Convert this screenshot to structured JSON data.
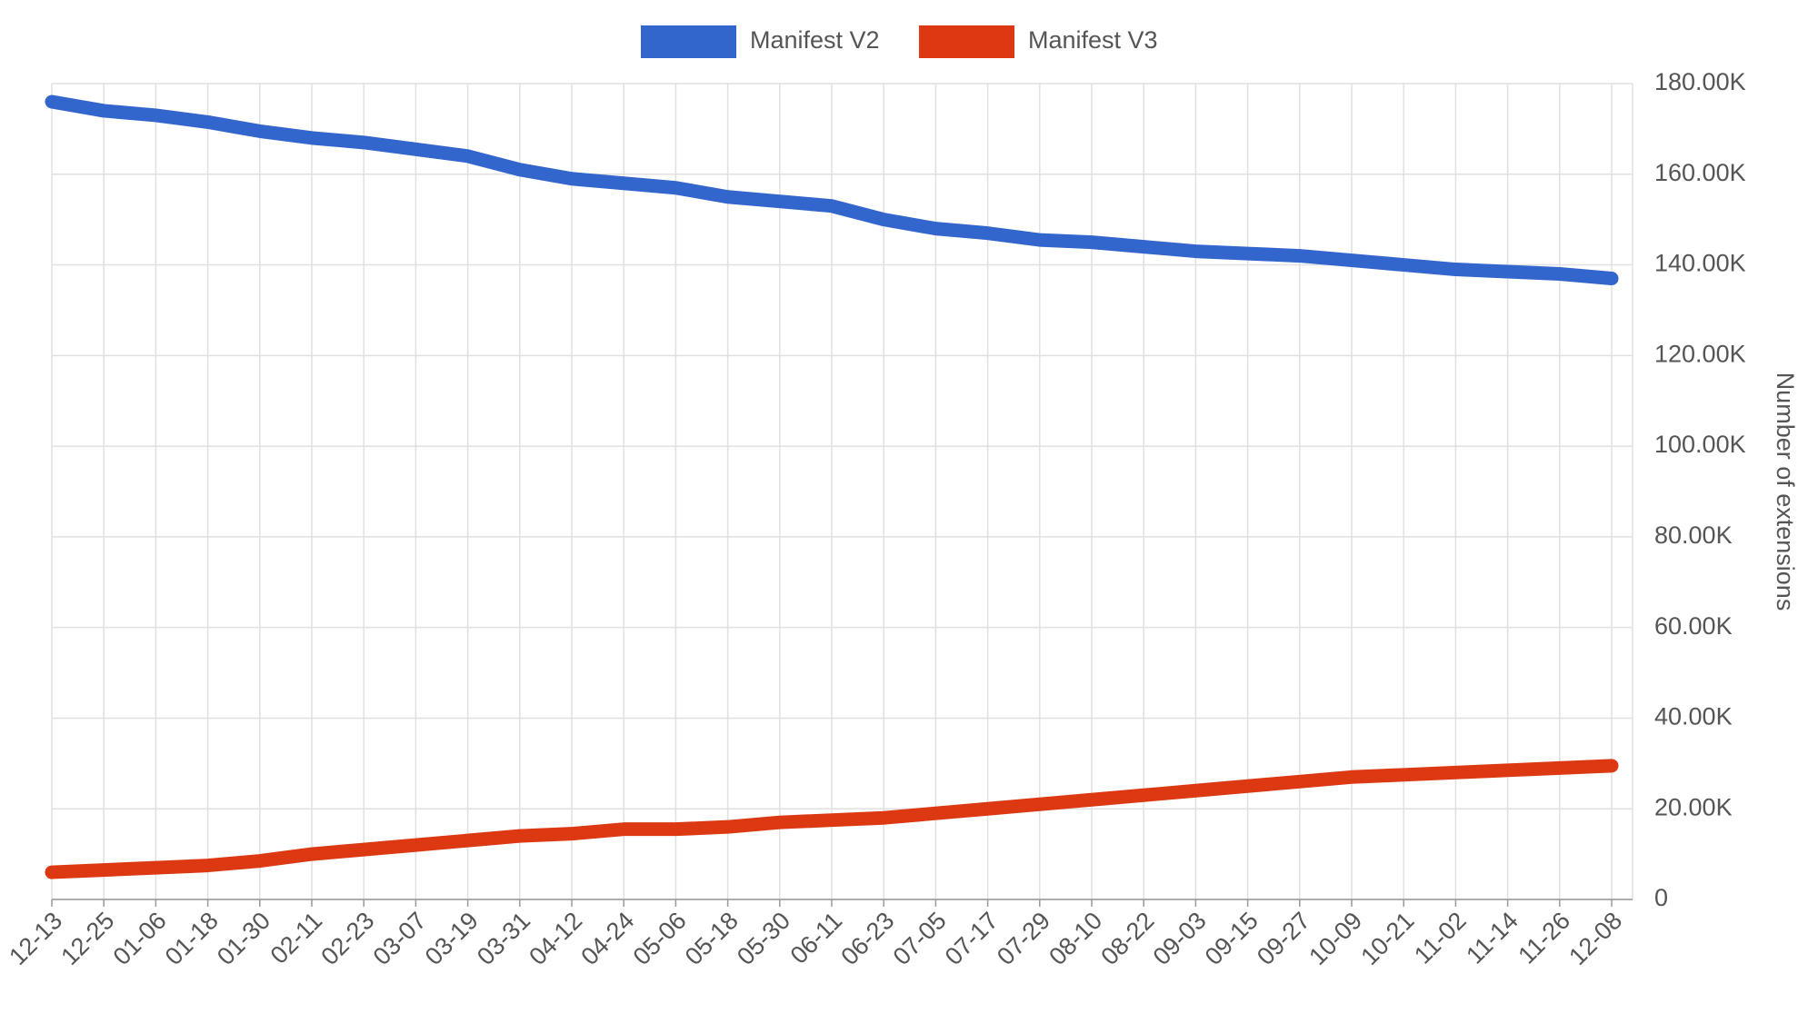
{
  "chart_data": {
    "type": "line",
    "y_axis_title": "Number of extensions",
    "categories": [
      "12-13",
      "12-25",
      "01-06",
      "01-18",
      "01-30",
      "02-11",
      "02-23",
      "03-07",
      "03-19",
      "03-31",
      "04-12",
      "04-24",
      "05-06",
      "05-18",
      "05-30",
      "06-11",
      "06-23",
      "07-05",
      "07-17",
      "07-29",
      "08-10",
      "08-22",
      "09-03",
      "09-15",
      "09-27",
      "10-09",
      "10-21",
      "11-02",
      "11-14",
      "11-26",
      "12-08"
    ],
    "series": [
      {
        "name": "Manifest V2",
        "color": "#3366cc",
        "values": [
          176000,
          174000,
          173000,
          171500,
          169500,
          168000,
          167000,
          165500,
          164000,
          161000,
          159000,
          158000,
          157000,
          155000,
          154000,
          153000,
          150000,
          148000,
          147000,
          145500,
          145000,
          144000,
          143000,
          142500,
          142000,
          141000,
          140000,
          139000,
          138500,
          138000,
          137000
        ]
      },
      {
        "name": "Manifest V3",
        "color": "#dc3912",
        "values": [
          6000,
          6500,
          7000,
          7500,
          8500,
          10000,
          11000,
          12000,
          13000,
          14000,
          14500,
          15500,
          15500,
          16000,
          17000,
          17500,
          18000,
          19000,
          20000,
          21000,
          22000,
          23000,
          24000,
          25000,
          26000,
          27000,
          27500,
          28000,
          28500,
          29000,
          29500
        ]
      }
    ],
    "ylim": [
      0,
      180000
    ],
    "yticks": [
      0,
      {
        "value": 20000,
        "label": "20.00K"
      },
      {
        "value": 40000,
        "label": "40.00K"
      },
      {
        "value": 60000,
        "label": "60.00K"
      },
      {
        "value": 80000,
        "label": "80.00K"
      },
      {
        "value": 100000,
        "label": "100.00K"
      },
      {
        "value": 120000,
        "label": "120.00K"
      },
      {
        "value": 140000,
        "label": "140.00K"
      },
      {
        "value": 160000,
        "label": "160.00K"
      },
      {
        "value": 180000,
        "label": "180.00K"
      }
    ],
    "grid": true,
    "legend": "top"
  }
}
